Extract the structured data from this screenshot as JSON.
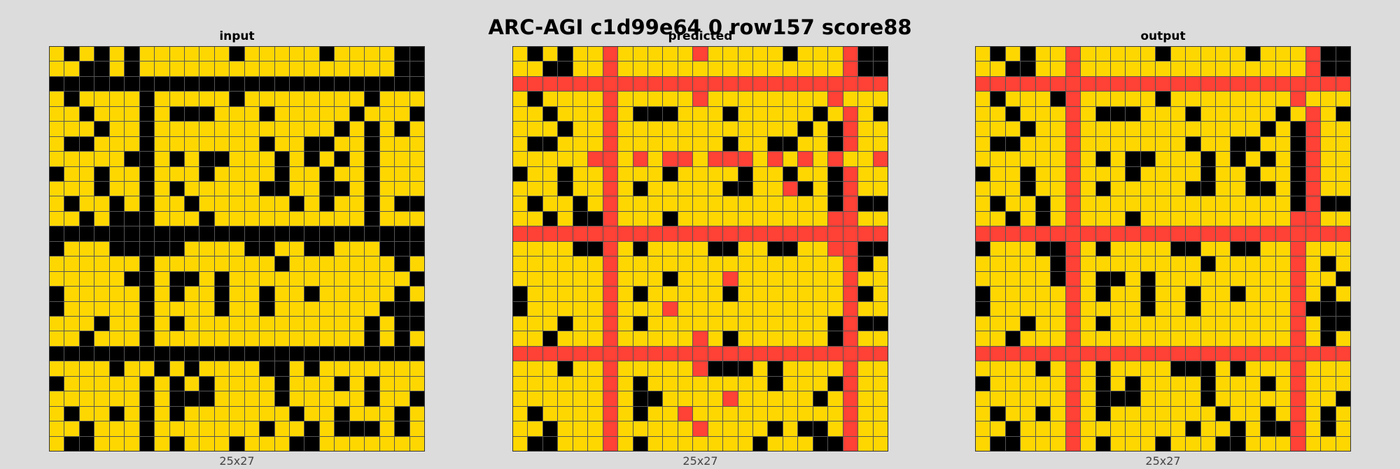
{
  "title": "ARC-AGI c1d99e64 0 row157 score88",
  "palette": {
    "0": "#000000",
    "2": "#ff4136",
    "4": "#ffd700"
  },
  "panels": [
    {
      "key": "input",
      "label": "input",
      "dims": "25x27"
    },
    {
      "key": "predicted",
      "label": "predicted",
      "dims": "25x27"
    },
    {
      "key": "output",
      "label": "output",
      "dims": "25x27"
    }
  ],
  "grids": {
    "input": [
      "4040404444440444440444400",
      "4400404444444444444444400",
      "0000000000000000000000000",
      "4044440444440444444440444",
      "4404440400044404444404440",
      "4440440444444444444040404",
      "4004440444444404400440444",
      "4444400404004440404040444",
      "0440440444044440440440444",
      "4440440404444400440040444",
      "4044040440444444040440400",
      "4404000444044444444440444",
      "0000000000000000000000000",
      "0444000004444004400444000",
      "4444440444444440444444404",
      "4444400400404444444444440",
      "0444440404404404404444404",
      "0444440444404404444444000",
      "4440440404444444444440400",
      "4404440444444444444440404",
      "0000000000000000000000000",
      "4444044040444400404444444",
      "0444440404044440444040444",
      "4444440400044440444440440",
      "4044040404444444044044404",
      "4404440444444404404000404",
      "4004440404440444004444444"
    ],
    "predicted": [
      "4040442444442444440444200",
      "4400442444444444444444200",
      "2222222222222222222222222",
      "4044442444442444444442444",
      "4404442400044404444404240",
      "4440442444444444444040244",
      "4004442444444404400440244",
      "4444422424224222424242442",
      "0440442444044440440440244",
      "4440442404444400442040244",
      "4044042444444444444440200",
      "4404002444044444444442244",
      "2222222222222222222222222",
      "4444002404444004400442200",
      "4444442444444444444444204",
      "4444442444044424444444244",
      "0444442404444404444444204",
      "0444442444244444444444244",
      "4440442404444444444440200",
      "4404442444442404444440244",
      "2222222222222222222222222",
      "4440442444442000404444244",
      "4444442404444444404440244",
      "4444442400444424444404244",
      "4044442404424444444444244",
      "4404442444442444404004244",
      "4004442404444444044400244"
    ],
    "output": [
      "4040442444440444440444200",
      "4400442444444444444444200",
      "2222222222222222222222222",
      "4044402444440444444442444",
      "4404442400044404444404240",
      "4440442444444444444040244",
      "4004442444444404400440244",
      "4444442404004440404040244",
      "0440442444044440440440244",
      "4440442404444400440040244",
      "4044042444444444444440200",
      "4404042444044444444442244",
      "2222222222222222222222222",
      "0444002404444004400442444",
      "4444402444444440444442404",
      "4444402400404444444442440",
      "0444442404404404404442404",
      "0444442444404404444442000",
      "4440442404444444444442400",
      "4404442444444444444442404",
      "2222222222222222222222222",
      "4444042404444000404442444",
      "0444442404044440444042444",
      "4444442400044440444442440",
      "4044042404444444044042404",
      "4404442444444404404002404",
      "4004442404440444004442444"
    ]
  }
}
